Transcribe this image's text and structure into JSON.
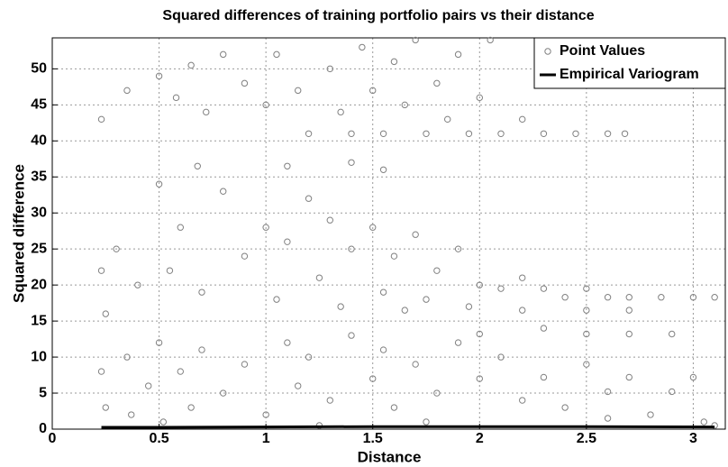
{
  "chart_data": {
    "type": "scatter",
    "title": "Squared differences of training portfolio pairs vs their distance",
    "xlabel": "Distance",
    "ylabel": "Squared difference",
    "xlim": [
      0,
      3.15
    ],
    "ylim": [
      0,
      54.3
    ],
    "xticks": [
      0,
      0.5,
      1,
      1.5,
      2,
      2.5,
      3
    ],
    "yticks": [
      0,
      5,
      10,
      15,
      20,
      25,
      30,
      35,
      40,
      45,
      50
    ],
    "grid": true,
    "legend": "upper right",
    "series": [
      {
        "name": "Point Values",
        "color": "#808080",
        "style": "marker",
        "x": [
          0.23,
          0.35,
          0.5,
          0.58,
          0.65,
          0.72,
          0.8,
          0.9,
          1.0,
          1.05,
          1.15,
          1.2,
          1.3,
          1.35,
          1.4,
          1.45,
          1.5,
          1.55,
          1.6,
          1.65,
          1.7,
          1.75,
          1.8,
          1.85,
          1.9,
          1.95,
          2.0,
          2.05,
          2.1,
          2.2,
          2.3,
          2.45,
          2.6,
          2.68,
          1.1,
          0.68,
          1.55,
          1.4,
          0.23,
          0.25,
          0.3,
          0.4,
          0.5,
          0.55,
          0.6,
          0.7,
          0.8,
          0.9,
          1.0,
          1.05,
          1.1,
          1.2,
          1.25,
          1.3,
          1.35,
          1.4,
          1.5,
          1.55,
          1.6,
          1.7,
          1.75,
          1.8,
          1.9,
          1.95,
          2.0,
          2.1,
          2.2,
          2.3,
          2.4,
          2.5,
          2.6,
          2.7,
          2.85,
          3.0,
          3.1,
          2.3,
          2.5,
          2.7,
          2.9,
          2.2,
          2.5,
          2.7,
          1.65,
          2.0,
          0.23,
          0.25,
          0.35,
          0.37,
          0.45,
          0.5,
          0.52,
          0.6,
          0.65,
          0.7,
          0.8,
          0.9,
          1.0,
          1.1,
          1.15,
          1.2,
          1.3,
          1.4,
          1.5,
          1.55,
          1.6,
          1.7,
          1.8,
          1.9,
          2.0,
          2.1,
          2.2,
          2.3,
          2.4,
          2.5,
          2.6,
          2.7,
          2.8,
          2.9,
          3.0,
          3.05,
          3.1,
          1.25,
          1.75,
          2.6
        ],
        "values": [
          43,
          47,
          49,
          46,
          50.5,
          44,
          52,
          48,
          45,
          52,
          47,
          41,
          50,
          44,
          41,
          53,
          47,
          41,
          51,
          45,
          54,
          41,
          48,
          43,
          52,
          41,
          46,
          54,
          41,
          43,
          41,
          41,
          41,
          41,
          36.5,
          36.5,
          36,
          37,
          22,
          16,
          25,
          20,
          34,
          22,
          28,
          19,
          33,
          24,
          28,
          18,
          26,
          32,
          21,
          29,
          17,
          25,
          28,
          19,
          24,
          27,
          18,
          22,
          25,
          17,
          20,
          19.5,
          21,
          19.5,
          18.3,
          19.5,
          18.3,
          18.3,
          18.3,
          18.3,
          18.3,
          14,
          13.2,
          13.2,
          13.2,
          16.5,
          16.5,
          16.5,
          16.5,
          13.2,
          8,
          3,
          10,
          2,
          6,
          12,
          1,
          8,
          3,
          11,
          5,
          9,
          2,
          12,
          6,
          10,
          4,
          13,
          7,
          11,
          3,
          9,
          5,
          12,
          7,
          10,
          4,
          7.2,
          3,
          9,
          5.2,
          7.2,
          2,
          5.2,
          7.2,
          1,
          0.5,
          0.5,
          1,
          1.5
        ]
      },
      {
        "name": "Empirical Variogram",
        "color": "#000000",
        "style": "line",
        "x": [
          0.23,
          0.5,
          1,
          1.5,
          2,
          2.5,
          3.1
        ],
        "values": [
          0.25,
          0.25,
          0.3,
          0.35,
          0.35,
          0.35,
          0.3
        ]
      }
    ]
  }
}
